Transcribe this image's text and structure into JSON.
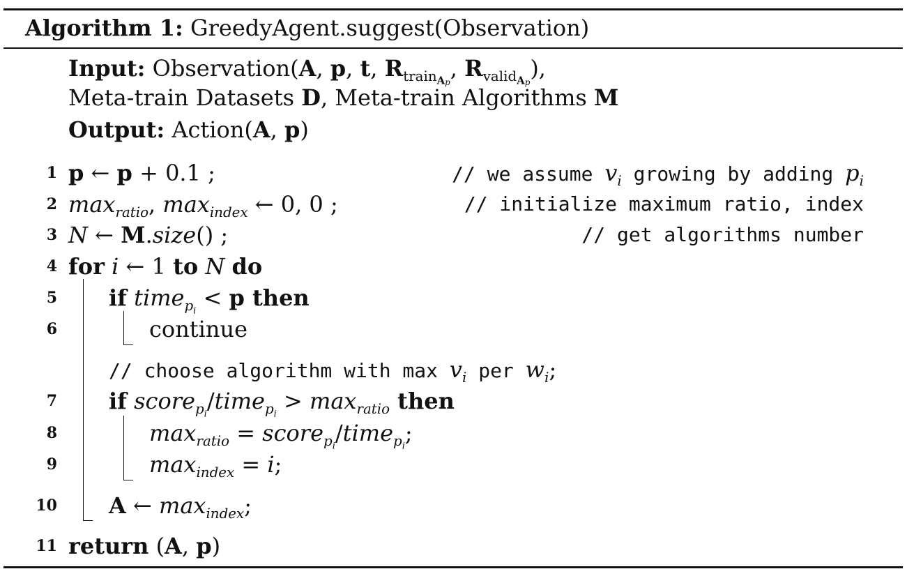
{
  "algorithm": {
    "label": "Algorithm 1:",
    "name": "GreedyAgent.suggest(Observation)",
    "input_label": "Input:",
    "input_text_prefix": "Observation(",
    "input_sym_A": "A",
    "input_sym_p": "p",
    "input_sym_t": "t",
    "input_sym_R": "R",
    "input_train": "train",
    "input_valid": "valid",
    "input_sub_A": "A",
    "input_sub_p": "p",
    "input_close": "),",
    "input_line2_a": "Meta-train Datasets ",
    "input_line2_D": "D",
    "input_line2_b": ", Meta-train Algorithms ",
    "input_line2_M": "M",
    "output_label": "Output:",
    "output_prefix": "Action(",
    "output_A": "A",
    "output_p": "p",
    "output_close": ")"
  },
  "lines": [
    {
      "num": "1",
      "code_a": "p",
      "code_b": " ← ",
      "code_c": "p",
      "code_d": " + 0.1 ;",
      "comment": "// we assume ",
      "comment_v": "v",
      "comment_vi": "i",
      "comment_b": " growing by adding ",
      "comment_p": "p",
      "comment_pi": "i"
    },
    {
      "num": "2",
      "code_a": "max",
      "code_a_sub": "ratio",
      "code_b": ", ",
      "code_c": "max",
      "code_c_sub": "index",
      "code_d": " ← 0, 0 ;",
      "comment": "// initialize maximum ratio, index"
    },
    {
      "num": "3",
      "code_a": "N",
      "code_b": " ← ",
      "code_c": "M",
      "code_d": ".",
      "code_e": "size",
      "code_f": "() ;",
      "comment": "// get algorithms number"
    },
    {
      "num": "4",
      "kw_for": "for",
      "code_a": "i",
      "code_b": " ← 1 ",
      "kw_to": "to",
      "code_c": " N ",
      "kw_do": "do"
    },
    {
      "num": "5",
      "kw_if": "if",
      "code_a": "time",
      "code_a_sub": "p",
      "code_a_subsub": "i",
      "code_b": " < ",
      "code_c": "p",
      "kw_then": " then"
    },
    {
      "num": "6",
      "code_a": "continue"
    },
    {
      "comment": "// choose algorithm with max ",
      "comment_v": "v",
      "comment_vi": "i",
      "comment_b": " per ",
      "comment_w": "w",
      "comment_wi": "i",
      "comment_end": ";"
    },
    {
      "num": "7",
      "kw_if": "if",
      "code_a": "score",
      "code_a_sub": "p",
      "code_a_subsub": "i",
      "code_b": "/",
      "code_c": "time",
      "code_c_sub": "p",
      "code_c_subsub": "i",
      "code_d": " > ",
      "code_e": "max",
      "code_e_sub": "ratio",
      "kw_then": " then"
    },
    {
      "num": "8",
      "code_a": "max",
      "code_a_sub": "ratio",
      "code_b": " = ",
      "code_c": "score",
      "code_c_sub": "p",
      "code_c_subsub": "i",
      "code_d": "/",
      "code_e": "time",
      "code_e_sub": "p",
      "code_e_subsub": "i",
      "code_f": ";"
    },
    {
      "num": "9",
      "code_a": "max",
      "code_a_sub": "index",
      "code_b": " = ",
      "code_c": "i",
      "code_d": ";"
    },
    {
      "num": "10",
      "code_a": "A",
      "code_b": " ← ",
      "code_c": "max",
      "code_c_sub": "index",
      "code_d": ";"
    },
    {
      "num": "11",
      "kw_return": "return",
      "code_a": " (",
      "code_b": "A",
      "code_c": ", ",
      "code_d": "p",
      "code_e": ")"
    }
  ]
}
